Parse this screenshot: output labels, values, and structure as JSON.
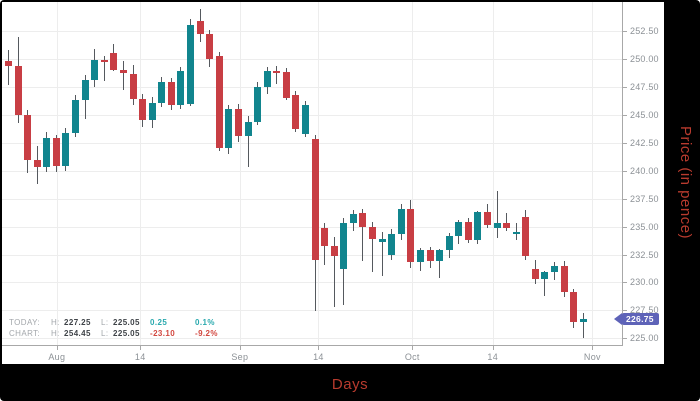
{
  "chart_data": {
    "type": "candlestick",
    "title": "",
    "xlabel": "Days",
    "ylabel": "Price (in pence)",
    "ylim": [
      224.4,
      255.1
    ],
    "grid": true,
    "last_price": "226.75",
    "y_ticks": [
      {
        "value": 225.0,
        "label": "225.00"
      },
      {
        "value": 227.5,
        "label": "227.50"
      },
      {
        "value": 230.0,
        "label": "230.00"
      },
      {
        "value": 232.5,
        "label": "232.50"
      },
      {
        "value": 235.0,
        "label": "235.00"
      },
      {
        "value": 237.5,
        "label": "237.50"
      },
      {
        "value": 240.0,
        "label": "240.00"
      },
      {
        "value": 242.5,
        "label": "242.50"
      },
      {
        "value": 245.0,
        "label": "245.00"
      },
      {
        "value": 247.5,
        "label": "247.50"
      },
      {
        "value": 250.0,
        "label": "250.00"
      },
      {
        "value": 252.5,
        "label": "252.50"
      }
    ],
    "x_ticks": [
      {
        "index": 5.1,
        "label": "Aug"
      },
      {
        "index": 13.8,
        "label": "14"
      },
      {
        "index": 24.2,
        "label": "Sep"
      },
      {
        "index": 32.4,
        "label": "14"
      },
      {
        "index": 42.2,
        "label": "Oct"
      },
      {
        "index": 50.6,
        "label": "14"
      },
      {
        "index": 61.0,
        "label": "Nov"
      }
    ],
    "ohlc": [
      [
        249.85,
        250.8,
        247.7,
        249.4
      ],
      [
        249.4,
        252.0,
        244.3,
        245.0
      ],
      [
        245.0,
        245.4,
        239.8,
        241.0
      ],
      [
        241.0,
        242.2,
        238.8,
        240.3
      ],
      [
        240.3,
        243.5,
        239.9,
        242.9
      ],
      [
        242.9,
        243.2,
        239.9,
        240.4
      ],
      [
        240.4,
        243.8,
        240.0,
        243.4
      ],
      [
        243.4,
        246.8,
        243.0,
        246.3
      ],
      [
        246.3,
        248.6,
        244.6,
        248.1
      ],
      [
        248.1,
        250.9,
        247.5,
        249.9
      ],
      [
        249.9,
        250.3,
        248.0,
        249.8
      ],
      [
        250.5,
        251.3,
        248.9,
        249.0
      ],
      [
        249.0,
        249.8,
        247.2,
        248.7
      ],
      [
        248.7,
        249.5,
        245.9,
        246.4
      ],
      [
        246.4,
        246.9,
        243.9,
        244.5
      ],
      [
        244.5,
        246.6,
        243.8,
        246.1
      ],
      [
        246.1,
        248.4,
        245.7,
        247.9
      ],
      [
        247.9,
        248.3,
        245.4,
        245.9
      ],
      [
        245.9,
        249.3,
        245.5,
        248.9
      ],
      [
        246.0,
        253.6,
        245.8,
        253.0
      ],
      [
        253.4,
        254.45,
        251.5,
        252.2
      ],
      [
        252.2,
        252.6,
        249.3,
        250.0
      ],
      [
        250.3,
        250.6,
        241.8,
        242.0
      ],
      [
        242.0,
        245.9,
        241.5,
        245.5
      ],
      [
        245.5,
        246.0,
        242.6,
        243.1
      ],
      [
        243.1,
        244.9,
        240.3,
        244.4
      ],
      [
        244.4,
        247.9,
        244.1,
        247.5
      ],
      [
        247.5,
        249.3,
        246.9,
        248.9
      ],
      [
        248.9,
        249.4,
        247.8,
        248.8
      ],
      [
        248.8,
        249.2,
        246.3,
        246.5
      ],
      [
        246.8,
        247.1,
        243.5,
        243.7
      ],
      [
        243.3,
        246.2,
        243.0,
        245.9
      ],
      [
        242.8,
        243.2,
        227.4,
        232.0
      ],
      [
        234.9,
        235.3,
        231.6,
        233.3
      ],
      [
        233.3,
        234.1,
        227.8,
        232.4
      ],
      [
        231.2,
        235.8,
        228.0,
        235.3
      ],
      [
        235.3,
        236.5,
        234.6,
        236.1
      ],
      [
        236.2,
        236.6,
        231.9,
        235.0
      ],
      [
        235.0,
        235.4,
        230.9,
        233.9
      ],
      [
        233.6,
        234.5,
        230.6,
        233.9
      ],
      [
        232.5,
        234.8,
        232.0,
        234.3
      ],
      [
        234.3,
        237.0,
        233.8,
        236.6
      ],
      [
        236.6,
        237.4,
        231.3,
        231.8
      ],
      [
        231.8,
        233.1,
        231.0,
        232.9
      ],
      [
        232.9,
        233.2,
        231.3,
        231.9
      ],
      [
        231.9,
        233.0,
        230.4,
        232.9
      ],
      [
        232.9,
        234.4,
        232.2,
        234.2
      ],
      [
        234.2,
        235.6,
        233.4,
        235.4
      ],
      [
        235.4,
        235.8,
        233.5,
        233.8
      ],
      [
        233.8,
        236.4,
        233.4,
        236.3
      ],
      [
        236.3,
        237.0,
        234.9,
        235.1
      ],
      [
        234.9,
        238.2,
        234.0,
        235.3
      ],
      [
        235.3,
        236.2,
        234.6,
        234.9
      ],
      [
        234.4,
        235.3,
        233.8,
        234.5
      ],
      [
        235.9,
        236.5,
        232.0,
        232.4
      ],
      [
        231.2,
        232.0,
        229.9,
        230.3
      ],
      [
        230.3,
        231.0,
        228.8,
        230.9
      ],
      [
        230.9,
        231.8,
        230.2,
        231.5
      ],
      [
        231.5,
        231.9,
        228.7,
        229.1
      ],
      [
        229.1,
        229.4,
        225.9,
        226.5
      ],
      [
        226.5,
        227.25,
        225.05,
        226.75
      ]
    ],
    "colors": {
      "up": "#11858e",
      "down": "#c83e44",
      "wick": "#55595e",
      "grid": "#ededed",
      "axis": "#a8a8a8",
      "tick_text": "#8c9196",
      "badge_bg": "#5e63b8",
      "axis_title_red": "#b93b2e"
    }
  },
  "legend": {
    "rows": [
      {
        "label": "TODAY:",
        "h_label": "H:",
        "high": "227.25",
        "l_label": "L:",
        "low": "225.05",
        "change": "0.25",
        "change_pct": "0.1%",
        "tone": "up"
      },
      {
        "label": "CHART:",
        "h_label": "H:",
        "high": "254.45",
        "l_label": "L:",
        "low": "225.05",
        "change": "-23.10",
        "change_pct": "-9.2%",
        "tone": "down"
      }
    ]
  },
  "axes": {
    "x_title": "Days",
    "y_title": "Price (in pence)"
  }
}
